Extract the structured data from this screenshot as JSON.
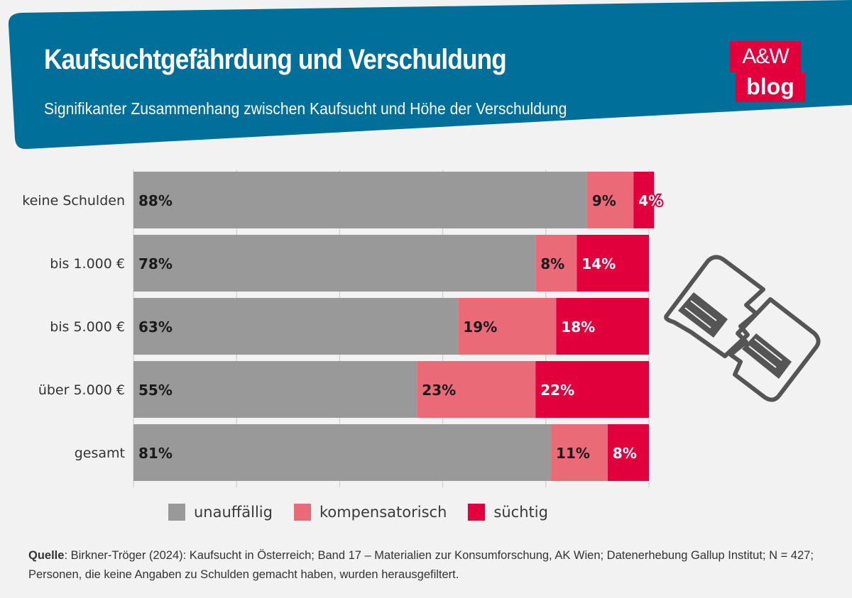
{
  "header": {
    "title": "Kaufsuchtgefährdung und Verschuldung",
    "subtitle": "Signifikanter Zusammenhang zwischen Kaufsucht und Höhe der Verschuldung",
    "bg_color": "#006f9a"
  },
  "logo": {
    "top": "A&W",
    "bottom": "blog",
    "color": "#e2003c"
  },
  "chart_data": {
    "type": "bar",
    "orientation": "horizontal",
    "stacked": true,
    "categories": [
      "keine Schulden",
      "bis 1.000 €",
      "bis 5.000 €",
      "über 5.000 €",
      "gesamt"
    ],
    "series": [
      {
        "name": "unauffällig",
        "color": "#999999",
        "values": [
          88,
          78,
          63,
          55,
          81
        ]
      },
      {
        "name": "kompensatorisch",
        "color": "#eb6a77",
        "values": [
          9,
          8,
          19,
          23,
          11
        ]
      },
      {
        "name": "süchtig",
        "color": "#e2003c",
        "values": [
          4,
          14,
          18,
          22,
          8
        ]
      }
    ],
    "value_suffix": "%",
    "xlim": [
      0,
      100
    ],
    "grid": true,
    "legend_position": "bottom"
  },
  "source": {
    "label": "Quelle",
    "text": ": Birkner-Tröger (2024): Kaufsucht in Österreich; Band 17 – Materialien zur Konsumforschung, AK Wien; Datenerhebung Gallup Institut; N = 427;",
    "line2": "Personen, die keine Angaben zu Schulden gemacht haben, wurden herausgefiltert."
  },
  "illustration": {
    "icon": "broken-credit-card-icon"
  }
}
